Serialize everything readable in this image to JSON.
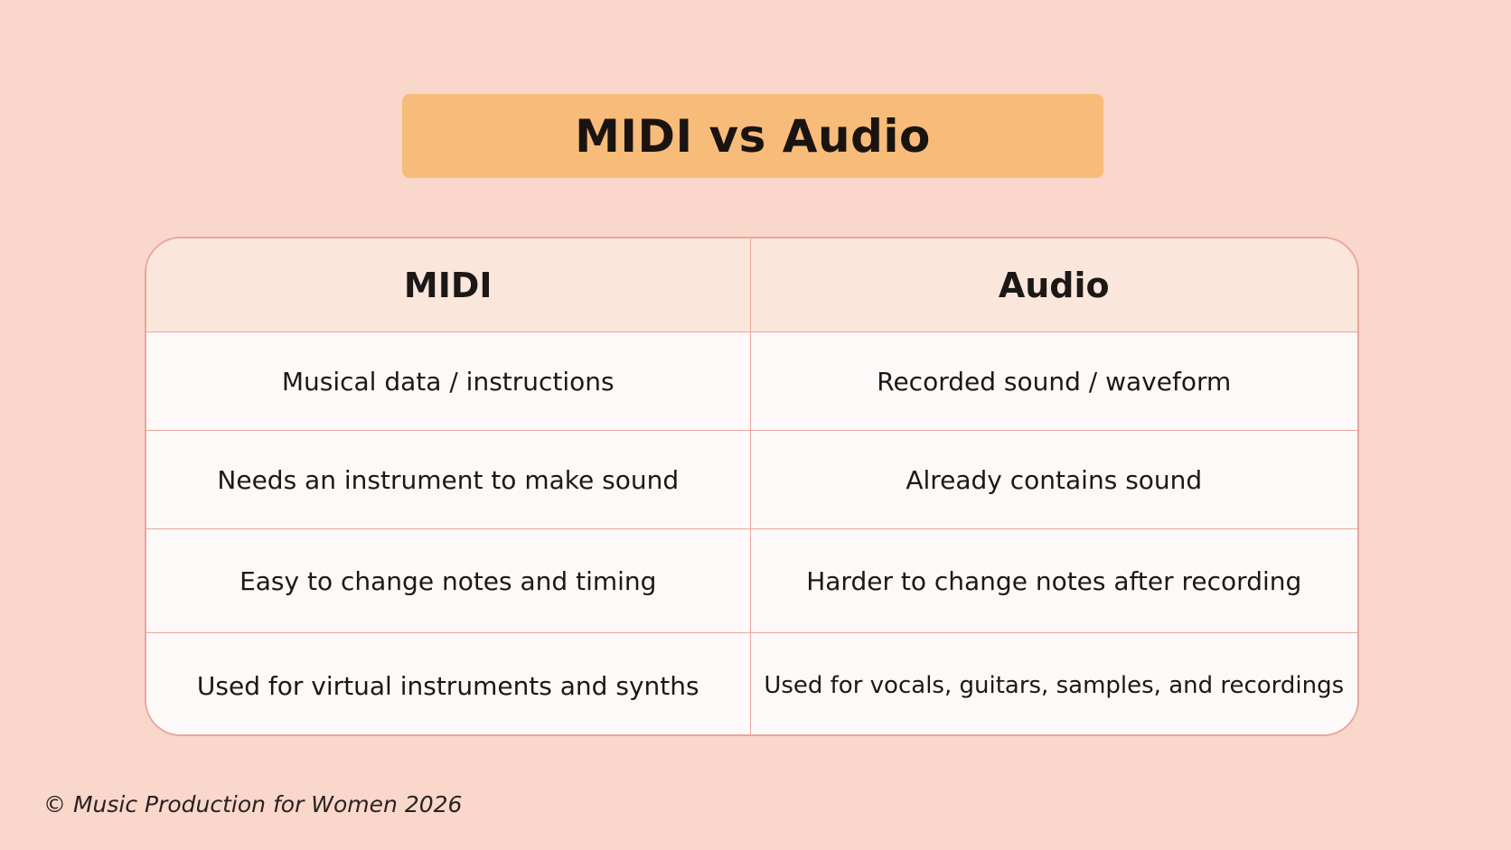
{
  "title": "MIDI vs Audio",
  "table": {
    "headers": [
      "MIDI",
      "Audio"
    ],
    "rows": [
      [
        "Musical data / instructions",
        "Recorded sound / waveform"
      ],
      [
        "Needs an instrument to make sound",
        "Already contains sound"
      ],
      [
        "Easy to change notes and timing",
        "Harder to change notes after recording"
      ],
      [
        "Used for virtual instruments and synths",
        "Used for vocals, guitars, samples, and recordings"
      ]
    ]
  },
  "footer": "© Music Production for Women 2026",
  "colors": {
    "background": "#f9d7cb",
    "title_box": "#f7bb7a",
    "header_row": "#fbe6dc",
    "cell": "#fdf9f8",
    "border": "#e8a79c"
  }
}
